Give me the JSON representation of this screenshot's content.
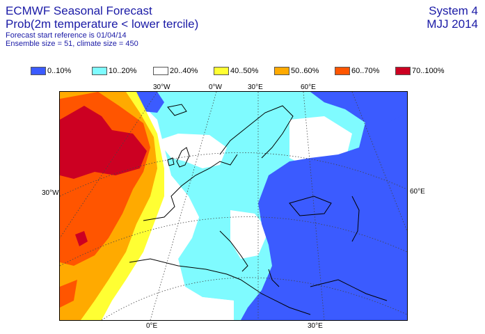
{
  "header": {
    "title": "ECMWF Seasonal Forecast",
    "subtitle": "Prob(2m temperature < lower tercile)",
    "line3": "Forecast start reference is 01/04/14",
    "line4": "Ensemble size = 51, climate size = 450",
    "system": "System 4",
    "season": "MJJ 2014"
  },
  "legend": [
    {
      "label": "0..10%",
      "color": "#3b5bff"
    },
    {
      "label": "10..20%",
      "color": "#7ffbff"
    },
    {
      "label": "20..40%",
      "color": "#ffffff"
    },
    {
      "label": "40..50%",
      "color": "#ffff33"
    },
    {
      "label": "50..60%",
      "color": "#ffaa00"
    },
    {
      "label": "60..70%",
      "color": "#ff5500"
    },
    {
      "label": "70..100%",
      "color": "#cc0022"
    }
  ],
  "axes": {
    "top": [
      "30°W",
      "0°W",
      "30°E",
      "60°E"
    ],
    "bottom": [
      "0°E",
      "30°E"
    ],
    "left": "30°W",
    "right": "60°E"
  }
}
